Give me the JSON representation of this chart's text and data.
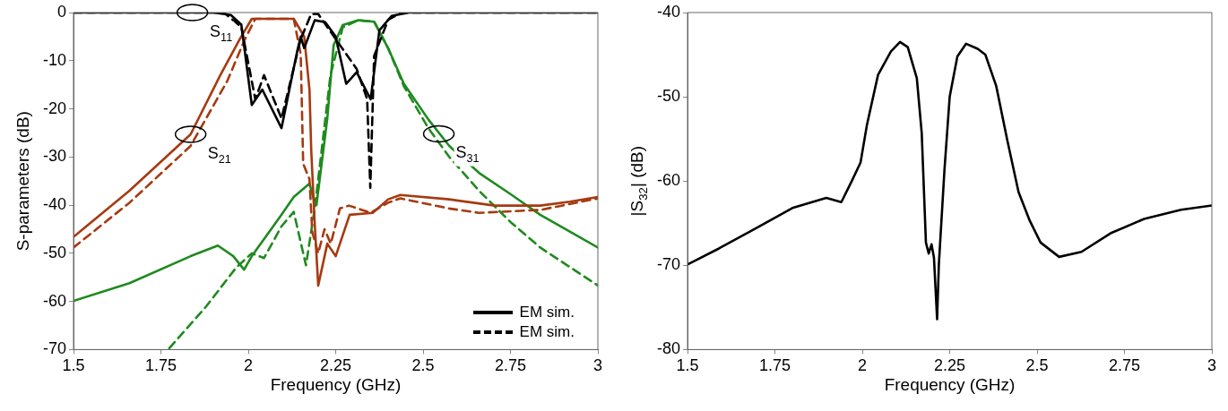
{
  "chart_data": [
    {
      "type": "line",
      "xlabel": "Frequency (GHz)",
      "ylabel": "S-parameters (dB)",
      "xlim": [
        1.5,
        3
      ],
      "ylim": [
        -70,
        0
      ],
      "xticks": [
        1.5,
        1.75,
        2,
        2.25,
        2.5,
        2.75,
        3
      ],
      "yticks": [
        -70,
        -60,
        -50,
        -40,
        -30,
        -20,
        -10,
        0
      ],
      "legend": "bottom right",
      "marker": "none",
      "annotations": [
        {
          "text": "S$_{11}$",
          "x": 1.84,
          "y": 0
        },
        {
          "text": "S$_{21}$",
          "x": 1.835,
          "y": -25.3
        },
        {
          "text": "S$_{31}$",
          "x": 2.545,
          "y": -25.2
        }
      ],
      "series": [
        {
          "name": "EM sim.",
          "color": "#000000",
          "line_style": "solid",
          "x": [
            1.5,
            1.9,
            1.95,
            1.98,
            2.01,
            2.04,
            2.095,
            2.14,
            2.15,
            2.16,
            2.19,
            2.22,
            2.25,
            2.28,
            2.31,
            2.35,
            2.375,
            2.41,
            2.46,
            3
          ],
          "values": [
            0,
            0,
            -0.5,
            -2.5,
            -19.2,
            -16,
            -24,
            -8,
            -5,
            -7.4,
            -1.6,
            -2,
            -5,
            -14.8,
            -12.4,
            -18,
            -3.7,
            -0.7,
            0,
            0
          ]
        },
        {
          "name": "EM sim.",
          "color": "#000000",
          "line_style": "dashed",
          "x": [
            1.5,
            1.93,
            1.98,
            2.02,
            2.045,
            2.095,
            2.15,
            2.18,
            2.2,
            2.25,
            2.31,
            2.34,
            2.349,
            2.36,
            2.4,
            2.44,
            3
          ],
          "values": [
            0,
            0,
            -3,
            -18,
            -13,
            -22,
            -5.5,
            -0.3,
            -0.3,
            -5.5,
            -11.7,
            -18,
            -36.4,
            -9,
            -1.5,
            0,
            0
          ]
        },
        {
          "color": "#a63a10",
          "line_style": "solid",
          "x": [
            1.5,
            1.66,
            1.835,
            1.92,
            1.975,
            2.01,
            2.13,
            2.16,
            2.175,
            2.18,
            2.19,
            2.2,
            2.226,
            2.25,
            2.29,
            2.356,
            2.4,
            2.435,
            2.575,
            2.705,
            2.835,
            2.92,
            3
          ],
          "values": [
            -46.6,
            -37,
            -25.3,
            -13,
            -5.6,
            -1.3,
            -1.3,
            -5,
            -16,
            -28.5,
            -43.8,
            -56.7,
            -48,
            -50.6,
            -42,
            -41.6,
            -38.8,
            -37.9,
            -38.8,
            -40.1,
            -40.1,
            -39.3,
            -38.3
          ]
        },
        {
          "color": "#a63a10",
          "line_style": "dashed",
          "x": [
            1.5,
            1.66,
            1.835,
            1.94,
            1.99,
            2.02,
            2.13,
            2.15,
            2.157,
            2.175,
            2.183,
            2.2,
            2.218,
            2.236,
            2.262,
            2.288,
            2.35,
            2.4,
            2.435,
            2.575,
            2.66,
            2.835,
            3
          ],
          "values": [
            -48.8,
            -39.5,
            -27.7,
            -14.2,
            -5.6,
            -1.3,
            -1.3,
            -8.7,
            -31.4,
            -34.6,
            -45.6,
            -50,
            -45,
            -48,
            -40.7,
            -40.1,
            -41.6,
            -39.5,
            -38.6,
            -40.7,
            -41.6,
            -41,
            -38.6
          ]
        },
        {
          "color": "#1f8a1f",
          "line_style": "solid",
          "x": [
            1.5,
            1.66,
            1.835,
            1.913,
            1.957,
            1.988,
            2.01,
            2.095,
            2.13,
            2.175,
            2.19,
            2.195,
            2.226,
            2.244,
            2.27,
            2.315,
            2.36,
            2.4,
            2.445,
            2.515,
            2.575,
            2.66,
            2.75,
            2.835,
            3
          ],
          "values": [
            -59.9,
            -56.2,
            -50.6,
            -48.4,
            -50.6,
            -53.4,
            -50.6,
            -42,
            -38.3,
            -35.5,
            -39.5,
            -40,
            -22,
            -6.8,
            -2.6,
            -1.6,
            -1.9,
            -7.4,
            -14.8,
            -22.2,
            -27.7,
            -33.3,
            -37.7,
            -42,
            -48.8
          ]
        },
        {
          "color": "#1f8a1f",
          "line_style": "dashed",
          "x": [
            1.774,
            1.88,
            1.965,
            2.01,
            2.045,
            2.095,
            2.13,
            2.165,
            2.19,
            2.21,
            2.235,
            2.27,
            2.315,
            2.36,
            2.4,
            2.445,
            2.515,
            2.575,
            2.66,
            2.75,
            2.835,
            3
          ],
          "values": [
            -69.7,
            -61,
            -53,
            -50,
            -51,
            -44.4,
            -41.4,
            -52.5,
            -40.7,
            -28.5,
            -13,
            -3.1,
            -1.6,
            -1.9,
            -7.4,
            -15.3,
            -24,
            -30,
            -37,
            -43.5,
            -48.8,
            -56.7
          ]
        }
      ]
    },
    {
      "type": "line",
      "xlabel": "Frequency (GHz)",
      "ylabel": "|S$_{32}$| (dB)",
      "xlim": [
        1.5,
        3
      ],
      "ylim": [
        -80,
        -40
      ],
      "xticks": [
        1.5,
        1.75,
        2,
        2.25,
        2.5,
        2.75,
        3
      ],
      "yticks": [
        -80,
        -70,
        -60,
        -50,
        -40
      ],
      "marker": "none",
      "series": [
        {
          "color": "#000000",
          "line_style": "solid",
          "x": [
            1.5,
            1.59,
            1.696,
            1.8,
            1.897,
            1.94,
            1.97,
            1.995,
            2.013,
            2.045,
            2.082,
            2.108,
            2.13,
            2.156,
            2.17,
            2.182,
            2.19,
            2.198,
            2.205,
            2.214,
            2.219,
            2.235,
            2.25,
            2.272,
            2.297,
            2.33,
            2.352,
            2.383,
            2.415,
            2.447,
            2.479,
            2.51,
            2.563,
            2.627,
            2.71,
            2.806,
            2.912,
            3
          ],
          "values": [
            -69.9,
            -68,
            -65.6,
            -63.2,
            -62,
            -62.5,
            -60,
            -57.8,
            -53.4,
            -47.4,
            -44.6,
            -43.5,
            -44.1,
            -47.8,
            -54.3,
            -67.3,
            -68.6,
            -67.5,
            -69.1,
            -76.4,
            -69.9,
            -58.7,
            -50,
            -45.2,
            -43.7,
            -44.3,
            -45,
            -48.7,
            -55.2,
            -61.3,
            -64.7,
            -67.3,
            -69,
            -68.4,
            -66.2,
            -64.5,
            -63.4,
            -62.9
          ]
        }
      ]
    }
  ]
}
